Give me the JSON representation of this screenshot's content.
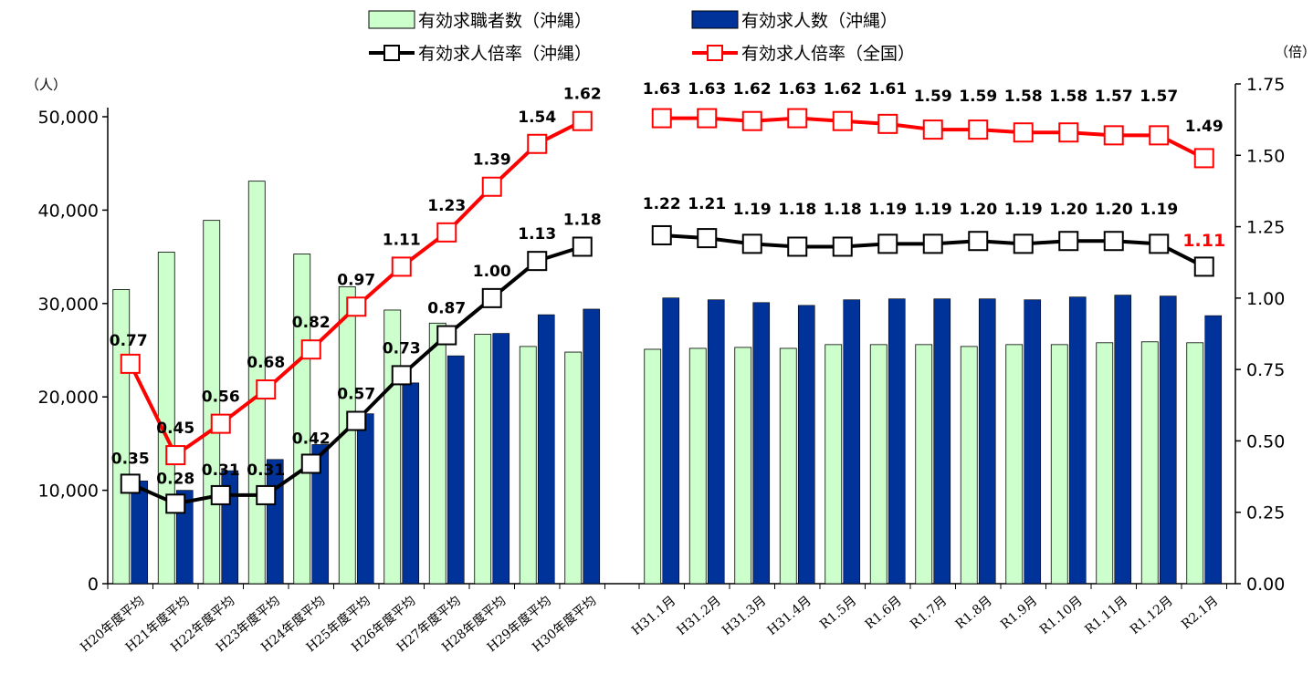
{
  "chart_data": {
    "type": "bar+line",
    "left_axis_unit": "（人）",
    "right_axis_unit": "（倍）",
    "categories": [
      "H20年度平均",
      "H21年度平均",
      "H22年度平均",
      "H23年度平均",
      "H24年度平均",
      "H25年度平均",
      "H26年度平均",
      "H27年度平均",
      "H28年度平均",
      "H29年度平均",
      "H30年度平均",
      "H31.1月",
      "H31.2月",
      "H31.3月",
      "H31.4月",
      "R1.5月",
      "R1.6月",
      "R1.7月",
      "R1.8月",
      "R1.9月",
      "R1.10月",
      "R1.11月",
      "R1.12月",
      "R2.1月"
    ],
    "left_ylim": [
      0,
      50000
    ],
    "left_ticks": [
      "0",
      "10,000",
      "20,000",
      "30,000",
      "40,000",
      "50,000"
    ],
    "right_ylim": [
      0,
      1.75
    ],
    "right_ticks": [
      "0.00",
      "0.25",
      "0.50",
      "0.75",
      "1.00",
      "1.25",
      "1.50",
      "1.75"
    ],
    "legend": {
      "seekers": "有効求職者数（沖縄）",
      "openings": "有効求人数（沖縄）",
      "ratio_okinawa": "有効求人倍率（沖縄）",
      "ratio_national": "有効求人倍率（全国）"
    },
    "series": [
      {
        "name": "有効求職者数（沖縄）",
        "type": "bar",
        "color": "#ccffcc",
        "values": [
          31500,
          35500,
          38900,
          43100,
          35300,
          31800,
          29300,
          27900,
          26700,
          25400,
          24800,
          25100,
          25200,
          25300,
          25200,
          25600,
          25600,
          25600,
          25400,
          25600,
          25600,
          25800,
          25900,
          25800
        ]
      },
      {
        "name": "有効求人数（沖縄）",
        "type": "bar",
        "color": "#003399",
        "values": [
          11000,
          10000,
          12100,
          13300,
          14900,
          18200,
          21500,
          24400,
          26800,
          28800,
          29400,
          30600,
          30400,
          30100,
          29800,
          30400,
          30500,
          30500,
          30500,
          30400,
          30700,
          30900,
          30800,
          28700
        ]
      },
      {
        "name": "有効求人倍率（沖縄）",
        "type": "line",
        "color": "#000000",
        "values": [
          0.35,
          0.28,
          0.31,
          0.31,
          0.42,
          0.57,
          0.73,
          0.87,
          1.0,
          1.13,
          1.18,
          1.22,
          1.21,
          1.19,
          1.18,
          1.18,
          1.19,
          1.19,
          1.2,
          1.19,
          1.2,
          1.2,
          1.19,
          1.11
        ],
        "labels": [
          "0.35",
          "0.28",
          "0.31",
          "0.31",
          "0.42",
          "0.57",
          "0.73",
          "0.87",
          "1.00",
          "1.13",
          "1.18",
          "1.22",
          "1.21",
          "1.19",
          "1.18",
          "1.18",
          "1.19",
          "1.19",
          "1.20",
          "1.19",
          "1.20",
          "1.20",
          "1.19",
          "1.11"
        ]
      },
      {
        "name": "有効求人倍率（全国）",
        "type": "line",
        "color": "#ff0000",
        "values": [
          0.77,
          0.45,
          0.56,
          0.68,
          0.82,
          0.97,
          1.11,
          1.23,
          1.39,
          1.54,
          1.62,
          1.63,
          1.63,
          1.62,
          1.63,
          1.62,
          1.61,
          1.59,
          1.59,
          1.58,
          1.58,
          1.57,
          1.57,
          1.49
        ],
        "labels": [
          "0.77",
          "0.45",
          "0.56",
          "0.68",
          "0.82",
          "0.97",
          "1.11",
          "1.23",
          "1.39",
          "1.54",
          "1.62",
          "1.63",
          "1.63",
          "1.62",
          "1.63",
          "1.62",
          "1.61",
          "1.59",
          "1.59",
          "1.58",
          "1.58",
          "1.57",
          "1.57",
          "1.49"
        ]
      }
    ]
  }
}
